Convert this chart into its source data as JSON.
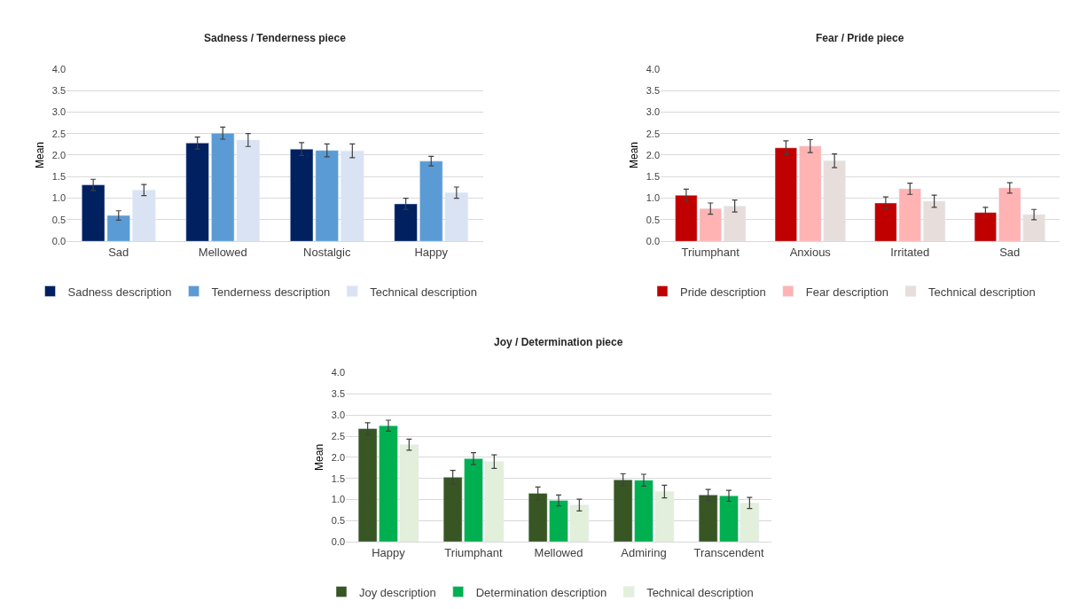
{
  "chart_data": [
    {
      "type": "bar",
      "title": "Sadness / Tenderness piece",
      "ylabel": "Mean",
      "categories": [
        "Sad",
        "Mellowed",
        "Nostalgic",
        "Happy"
      ],
      "series": [
        {
          "name": "Sadness description",
          "color": "#002060",
          "values": [
            1.31,
            2.28,
            2.14,
            0.87
          ],
          "errors": [
            0.13,
            0.14,
            0.15,
            0.13
          ]
        },
        {
          "name": "Tenderness description",
          "color": "#5b9bd5",
          "values": [
            0.6,
            2.51,
            2.11,
            1.86
          ],
          "errors": [
            0.11,
            0.14,
            0.15,
            0.11
          ]
        },
        {
          "name": "Technical description",
          "color": "#dae3f3",
          "values": [
            1.19,
            2.35,
            2.1,
            1.13
          ],
          "errors": [
            0.13,
            0.15,
            0.16,
            0.13
          ]
        }
      ],
      "ylim": [
        0,
        4
      ],
      "yticks": [
        {
          "value": 0,
          "label": "0.0"
        },
        {
          "value": 0.5,
          "label": "0.5"
        },
        {
          "value": 1,
          "label": "1.0"
        },
        {
          "value": 1.5,
          "label": "1.5"
        },
        {
          "value": 2,
          "label": "2.0"
        },
        {
          "value": 2.5,
          "label": "2.5"
        },
        {
          "value": 3,
          "label": "3.0"
        },
        {
          "value": 3.5,
          "label": "3.5"
        },
        {
          "value": 4,
          "label": "4.0"
        }
      ],
      "grid": "y",
      "legend": "bottom"
    },
    {
      "type": "bar",
      "title": "Fear / Pride piece",
      "ylabel": "Mean",
      "categories": [
        "Triumphant",
        "Anxious",
        "Irritated",
        "Sad"
      ],
      "series": [
        {
          "name": "Pride description",
          "color": "#c00000",
          "values": [
            1.07,
            2.17,
            0.89,
            0.67
          ],
          "errors": [
            0.14,
            0.16,
            0.14,
            0.12
          ]
        },
        {
          "name": "Fear description",
          "color": "#ffb3b3",
          "values": [
            0.76,
            2.21,
            1.22,
            1.24
          ],
          "errors": [
            0.13,
            0.15,
            0.13,
            0.12
          ]
        },
        {
          "name": "Technical description",
          "color": "#e7dedc",
          "values": [
            0.82,
            1.87,
            0.93,
            0.62
          ],
          "errors": [
            0.14,
            0.16,
            0.14,
            0.12
          ]
        }
      ],
      "ylim": [
        0,
        4
      ],
      "yticks": [
        {
          "value": 0,
          "label": "0.0"
        },
        {
          "value": 0.5,
          "label": "0.5"
        },
        {
          "value": 1,
          "label": "1.0"
        },
        {
          "value": 1.5,
          "label": "1.5"
        },
        {
          "value": 2,
          "label": "2.0"
        },
        {
          "value": 2.5,
          "label": "2.5"
        },
        {
          "value": 3,
          "label": "3.0"
        },
        {
          "value": 3.5,
          "label": "3.5"
        },
        {
          "value": 4,
          "label": "4.0"
        }
      ],
      "grid": "y",
      "legend": "bottom"
    },
    {
      "type": "bar",
      "title": "Joy / Determination piece",
      "ylabel": "Mean",
      "categories": [
        "Happy",
        "Triumphant",
        "Mellowed",
        "Admiring",
        "Transcendent"
      ],
      "series": [
        {
          "name": "Joy description",
          "color": "#375623",
          "values": [
            2.68,
            1.53,
            1.15,
            1.47,
            1.11
          ],
          "errors": [
            0.14,
            0.16,
            0.15,
            0.14,
            0.13
          ]
        },
        {
          "name": "Determination description",
          "color": "#00b050",
          "values": [
            2.75,
            1.97,
            0.98,
            1.46,
            1.09
          ],
          "errors": [
            0.13,
            0.14,
            0.13,
            0.14,
            0.13
          ]
        },
        {
          "name": "Technical description",
          "color": "#e2efda",
          "values": [
            2.3,
            1.9,
            0.87,
            1.19,
            0.92
          ],
          "errors": [
            0.13,
            0.16,
            0.14,
            0.15,
            0.13
          ]
        }
      ],
      "ylim": [
        0,
        4
      ],
      "yticks": [
        {
          "value": 0,
          "label": "0.0"
        },
        {
          "value": 0.5,
          "label": "0.5"
        },
        {
          "value": 1,
          "label": "1.0"
        },
        {
          "value": 1.5,
          "label": "1.5"
        },
        {
          "value": 2,
          "label": "2.0"
        },
        {
          "value": 2.5,
          "label": "2.5"
        },
        {
          "value": 3,
          "label": "3.0"
        },
        {
          "value": 3.5,
          "label": "3.5"
        },
        {
          "value": 4,
          "label": "4.0"
        }
      ],
      "grid": "y",
      "legend": "bottom"
    }
  ]
}
